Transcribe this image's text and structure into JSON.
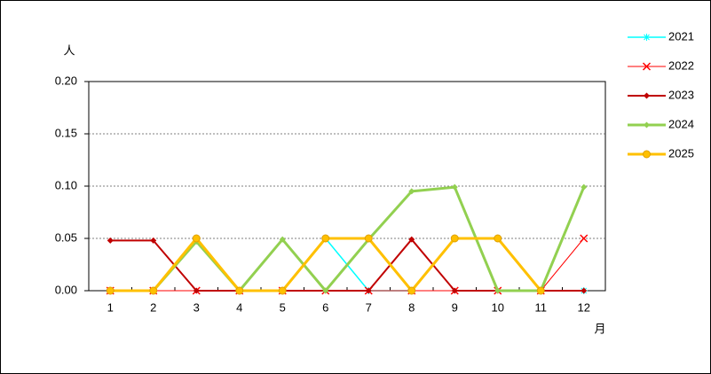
{
  "chart_data": {
    "type": "line",
    "y_label": "人",
    "x_label": "月",
    "categories": [
      "1",
      "2",
      "3",
      "4",
      "5",
      "6",
      "7",
      "8",
      "9",
      "10",
      "11",
      "12"
    ],
    "series": [
      {
        "name": "2021",
        "color": "#00ffff",
        "marker": "star",
        "values": [
          0,
          0,
          0.05,
          0,
          0,
          0.05,
          0,
          0,
          0.05,
          0.05,
          0,
          0
        ]
      },
      {
        "name": "2022",
        "color": "#ff0000",
        "marker": "x",
        "values": [
          0,
          0,
          0,
          0,
          0,
          0,
          0,
          0,
          0,
          0,
          0,
          0.05
        ]
      },
      {
        "name": "2023",
        "color": "#c00000",
        "marker": "diamond",
        "values": [
          0.048,
          0.048,
          0,
          0,
          0,
          0,
          0,
          0.049,
          0,
          0,
          0,
          0
        ]
      },
      {
        "name": "2024",
        "color": "#92d050",
        "marker": "diamond",
        "values": [
          0,
          0,
          0.047,
          0,
          0.049,
          0,
          0.049,
          0.095,
          0.099,
          0,
          0,
          0.099
        ]
      },
      {
        "name": "2025",
        "color": "#ffc000",
        "marker": "circle",
        "values": [
          0,
          0,
          0.05,
          0,
          0,
          0.05,
          0.05,
          0,
          0.05,
          0.05,
          0,
          null
        ]
      }
    ],
    "ylim": [
      0,
      0.2
    ],
    "yticks": [
      {
        "value": 0,
        "label": "0.00"
      },
      {
        "value": 0.05,
        "label": "0.05"
      },
      {
        "value": 0.1,
        "label": "0.10"
      },
      {
        "value": 0.15,
        "label": "0.15"
      },
      {
        "value": 0.2,
        "label": "0.20"
      }
    ],
    "grid": true,
    "legend": "right"
  }
}
